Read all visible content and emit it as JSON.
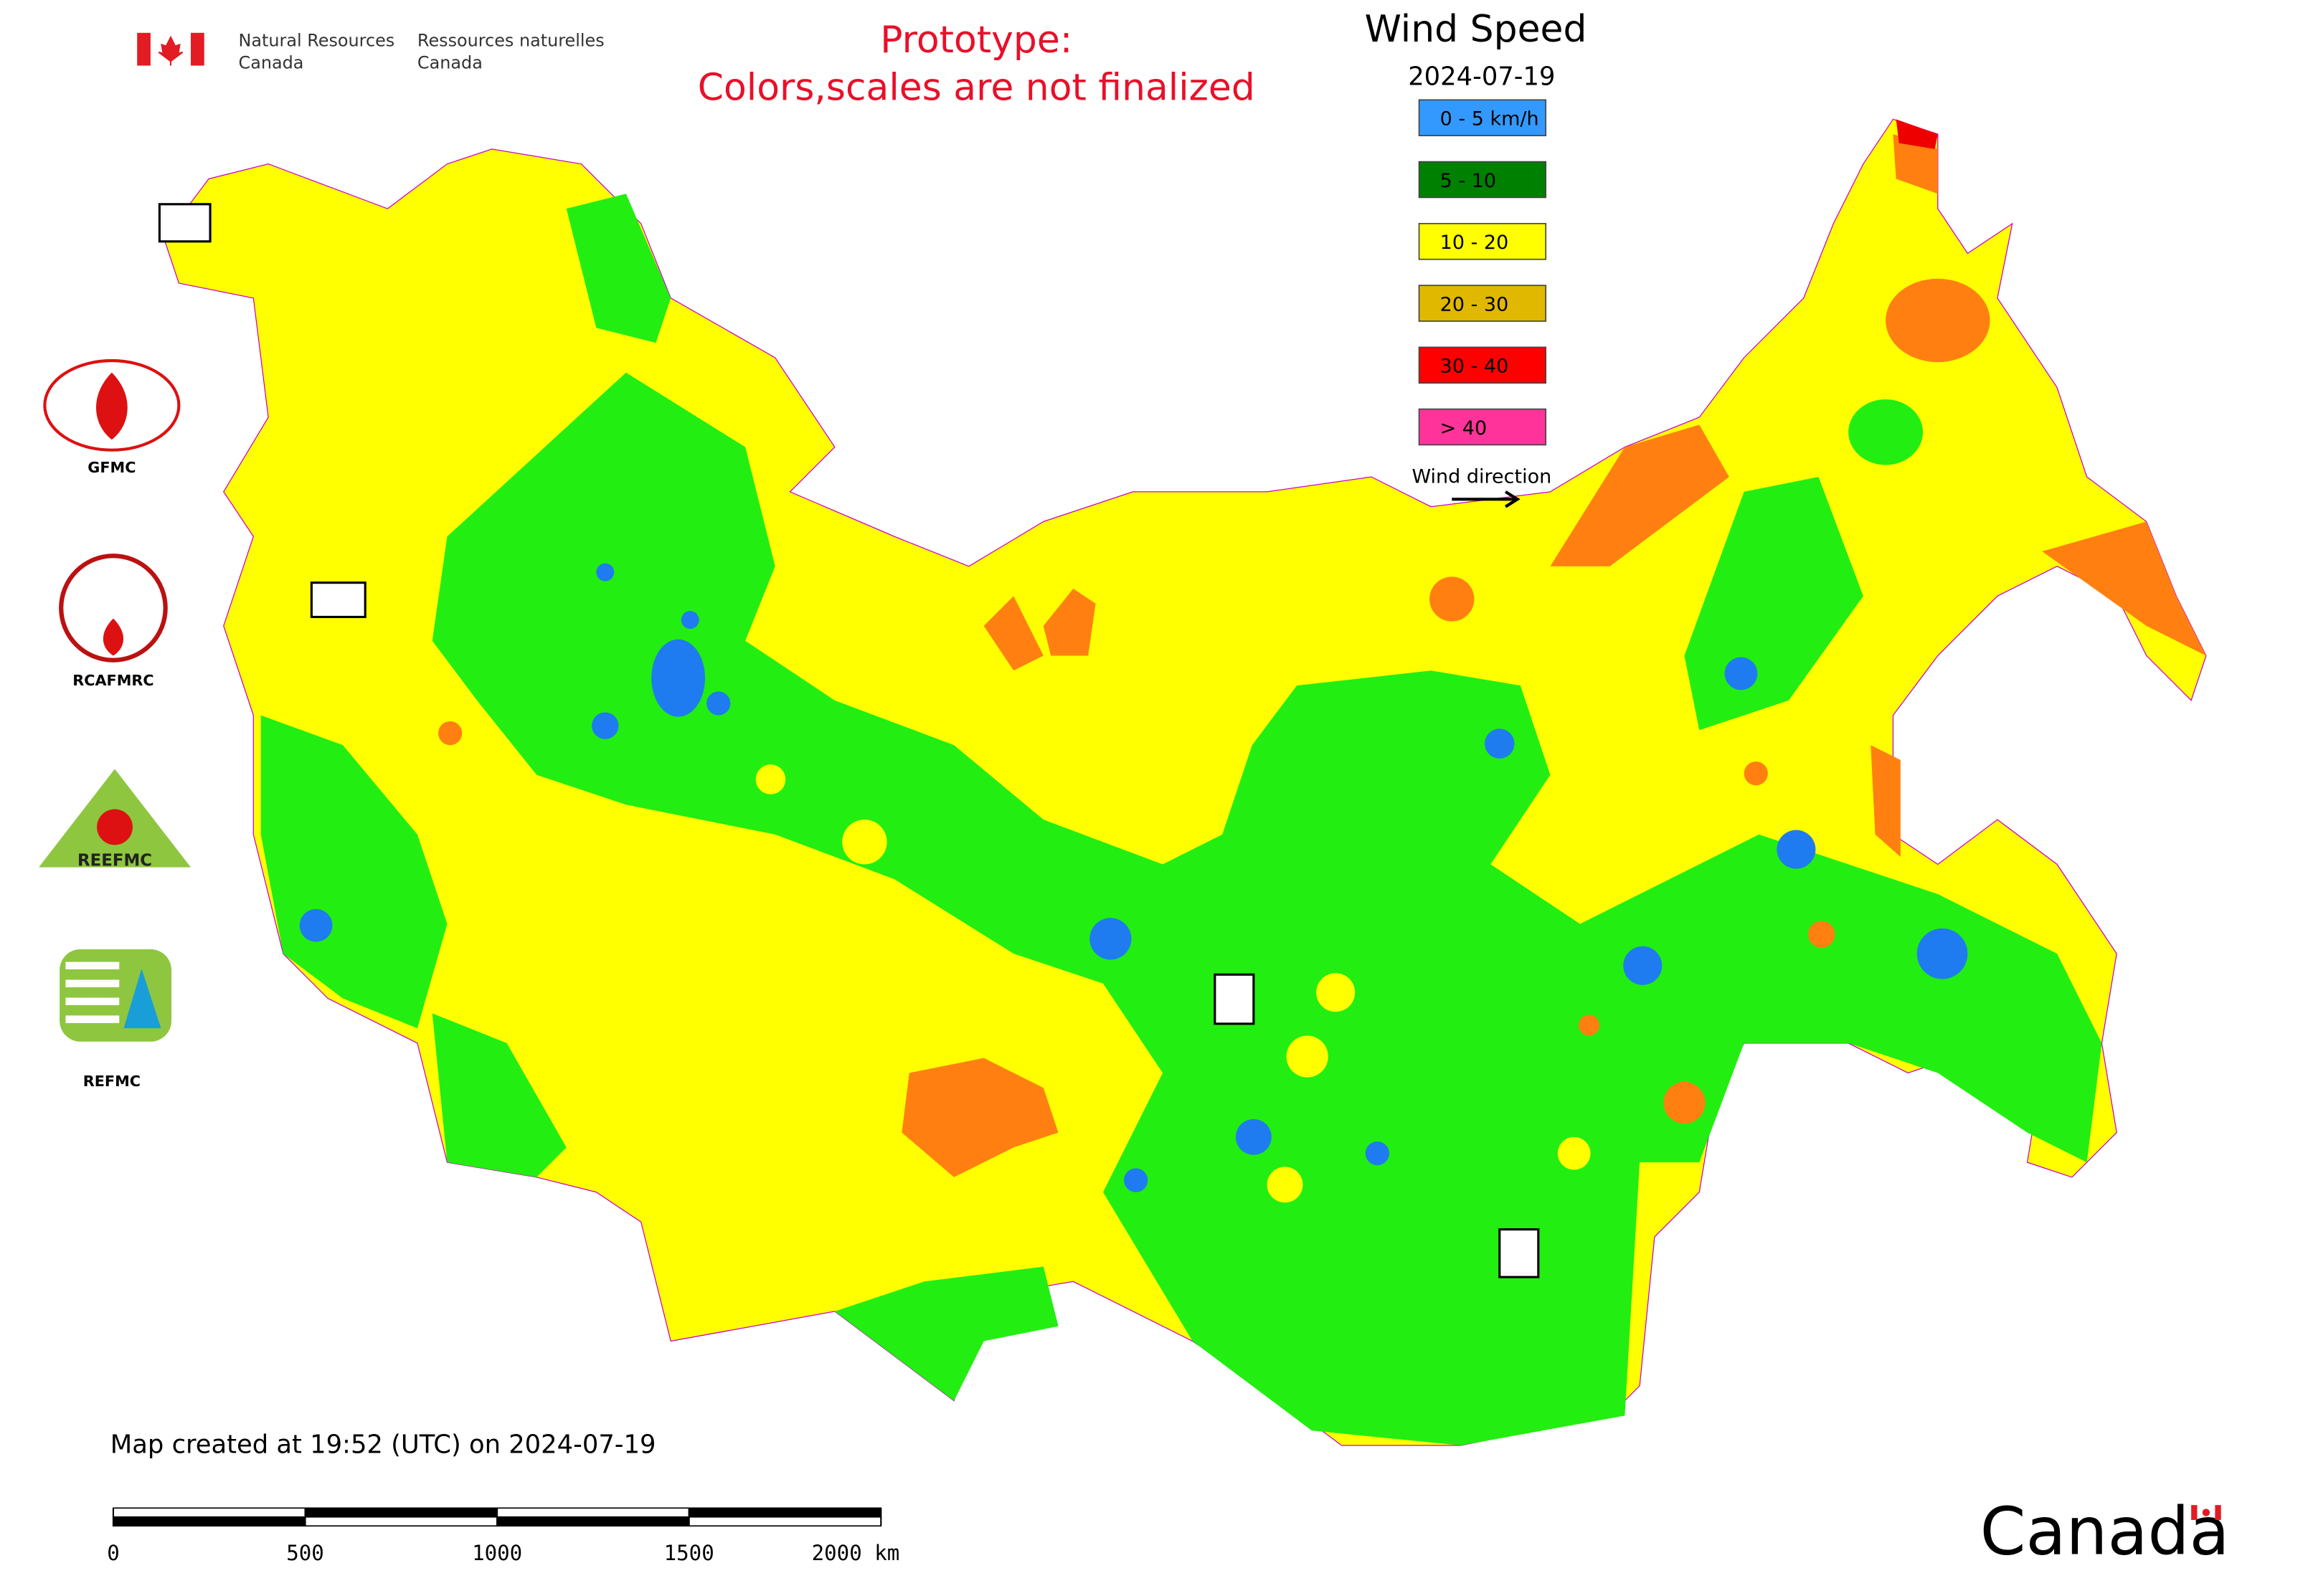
{
  "header": {
    "agency_en": [
      "Natural Resources",
      "Canada"
    ],
    "agency_fr": [
      "Ressources naturelles",
      "Canada"
    ],
    "notice": [
      "Prototype:",
      "Colors,scales are not finalized"
    ]
  },
  "legend": {
    "title": "Wind Speed",
    "date": "2024-07-19",
    "items": [
      {
        "label": "0 - 5 km/h",
        "color": "#3399ff"
      },
      {
        "label": "5 - 10",
        "color": "#008000"
      },
      {
        "label": "10 - 20",
        "color": "#ffff00"
      },
      {
        "label": "20 - 30",
        "color": "#e0b800"
      },
      {
        "label": "30 - 40",
        "color": "#ff0000"
      },
      {
        "label": "> 40",
        "color": "#ff3399"
      }
    ],
    "direction_label": "Wind direction"
  },
  "logos": [
    "GFMC",
    "RCAFMRC",
    "REEFMC",
    "REFMC"
  ],
  "footer": {
    "created": "Map created at 19:52 (UTC) on 2024-07-19",
    "scale_ticks": [
      0,
      500,
      1000,
      1500,
      {
        "value": 2000,
        "label": "2000 km"
      }
    ],
    "wordmark": "Canada"
  }
}
